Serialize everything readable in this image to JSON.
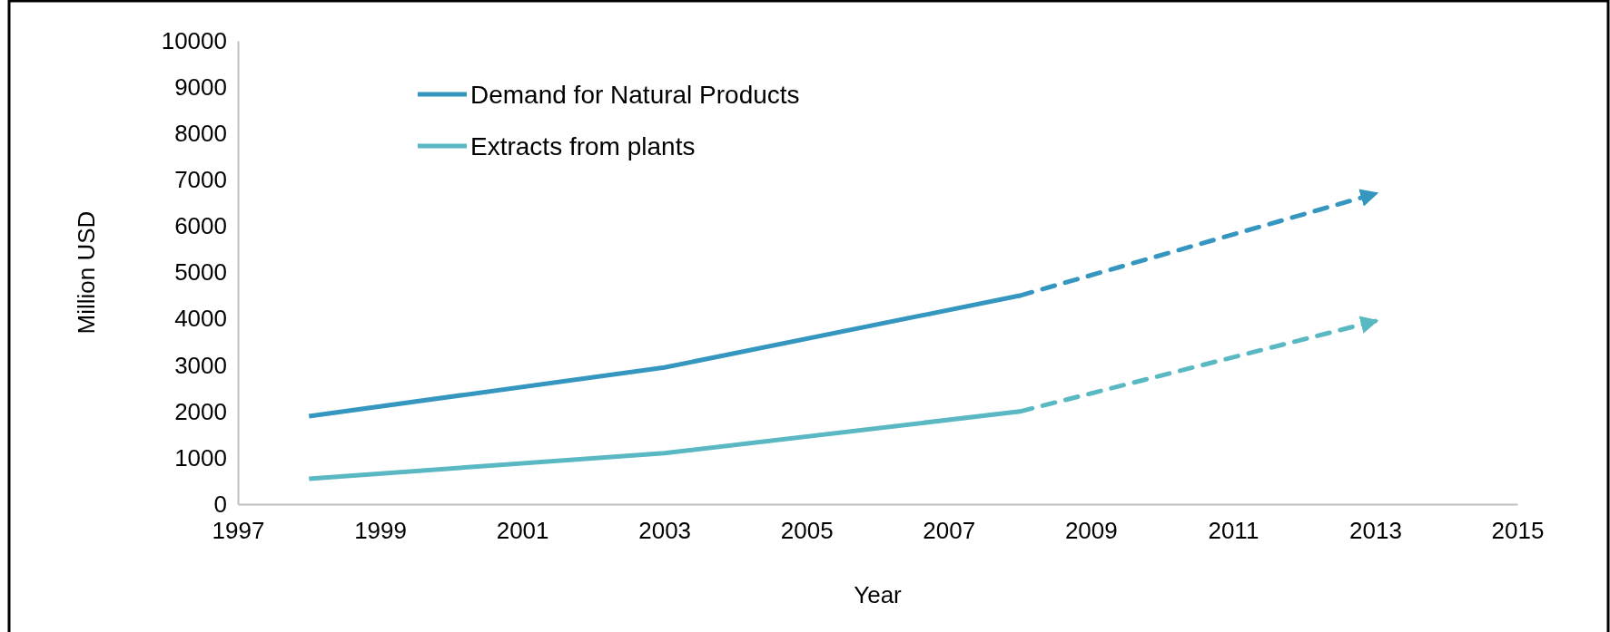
{
  "chart_data": {
    "type": "line",
    "xlabel": "Year",
    "ylabel": "Million USD",
    "xlim": [
      1997,
      2015
    ],
    "xticks": [
      1997,
      1999,
      2001,
      2003,
      2005,
      2007,
      2009,
      2011,
      2013,
      2015
    ],
    "ylim": [
      0,
      10000
    ],
    "yticks": [
      0,
      1000,
      2000,
      3000,
      4000,
      5000,
      6000,
      7000,
      8000,
      9000,
      10000
    ],
    "grid": false,
    "legend": "top left",
    "marker": "none",
    "series": [
      {
        "name": "Demand for Natural Products",
        "color": "#3596c0",
        "x": [
          1998,
          2003,
          2008
        ],
        "values": [
          1900,
          2950,
          4500
        ],
        "line_style": "solid"
      },
      {
        "name": "Extracts from plants",
        "color": "#5ab8c2",
        "x": [
          1998,
          2003,
          2008
        ],
        "values": [
          550,
          1100,
          2000
        ],
        "line_style": "solid"
      },
      {
        "color": "#3596c0",
        "x": [
          2008,
          2013
        ],
        "values": [
          4500,
          6700
        ],
        "line_style": "dashed"
      },
      {
        "color": "#5ab8c2",
        "x": [
          2008,
          2013
        ],
        "values": [
          2000,
          3950
        ],
        "line_style": "dashed"
      }
    ]
  }
}
